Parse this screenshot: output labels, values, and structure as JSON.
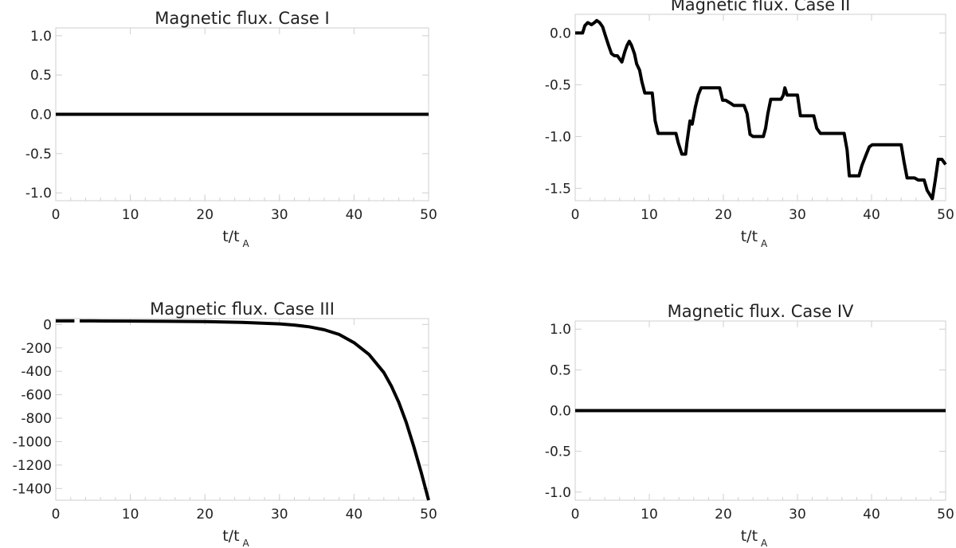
{
  "chart_data": [
    {
      "type": "line",
      "title": "Magnetic flux. Case I",
      "xlabel": "t/t",
      "xlabel_subscript": "A",
      "xlim": [
        0,
        50
      ],
      "ylim": [
        -1.1,
        1.1
      ],
      "xticks": [
        "0",
        "10",
        "20",
        "30",
        "40",
        "50"
      ],
      "yticks": [
        "-1.0",
        "-0.5",
        "0.0",
        "0.5",
        "1.0"
      ],
      "series": [
        {
          "x": [
            0,
            50
          ],
          "y": [
            0,
            0
          ]
        }
      ]
    },
    {
      "type": "line",
      "title": "Magnetic flux. Case II",
      "xlabel": "t/t",
      "xlabel_subscript": "A",
      "xlim": [
        0,
        50
      ],
      "ylim": [
        -1.62,
        0.18
      ],
      "xticks": [
        "0",
        "10",
        "20",
        "30",
        "40",
        "50"
      ],
      "yticks": [
        "-1.5",
        "-1.0",
        "-0.5",
        "0.0"
      ],
      "series": [
        {
          "x": [
            0,
            1.0,
            1.3,
            1.7,
            2.2,
            2.6,
            2.9,
            3.3,
            3.7,
            4.1,
            4.5,
            4.9,
            5.3,
            5.7,
            6.0,
            6.3,
            6.7,
            7.0,
            7.3,
            7.6,
            8.0,
            8.3,
            8.7,
            9.0,
            9.4,
            9.8,
            10.4,
            10.8,
            11.2,
            12.0,
            13.6,
            13.9,
            14.4,
            14.9,
            15.1,
            15.5,
            15.8,
            16.2,
            16.6,
            17.0,
            17.4,
            18.5,
            19.5,
            19.9,
            20.3,
            21.0,
            21.4,
            22.8,
            23.2,
            23.6,
            24.0,
            25.4,
            25.7,
            26.0,
            26.4,
            27.8,
            28.1,
            28.3,
            28.6,
            28.8,
            30.0,
            30.4,
            32.2,
            32.6,
            33.1,
            36.3,
            36.7,
            37.0,
            38.3,
            38.7,
            39.3,
            39.7,
            40.1,
            44.0,
            44.4,
            44.8,
            45.8,
            46.3,
            47.1,
            47.5,
            48.2,
            48.6,
            49.0,
            49.5,
            49.8,
            50.0
          ],
          "y": [
            0.0,
            0.0,
            0.07,
            0.1,
            0.08,
            0.1,
            0.12,
            0.1,
            0.06,
            -0.03,
            -0.12,
            -0.2,
            -0.22,
            -0.22,
            -0.25,
            -0.28,
            -0.18,
            -0.12,
            -0.08,
            -0.12,
            -0.2,
            -0.3,
            -0.36,
            -0.47,
            -0.58,
            -0.58,
            -0.58,
            -0.85,
            -0.97,
            -0.97,
            -0.97,
            -1.06,
            -1.17,
            -1.17,
            -1.05,
            -0.85,
            -0.88,
            -0.72,
            -0.6,
            -0.53,
            -0.53,
            -0.53,
            -0.53,
            -0.65,
            -0.65,
            -0.68,
            -0.7,
            -0.7,
            -0.78,
            -0.98,
            -1.0,
            -1.0,
            -0.92,
            -0.78,
            -0.64,
            -0.64,
            -0.6,
            -0.53,
            -0.6,
            -0.6,
            -0.6,
            -0.8,
            -0.8,
            -0.92,
            -0.97,
            -0.97,
            -1.13,
            -1.38,
            -1.38,
            -1.28,
            -1.17,
            -1.1,
            -1.08,
            -1.08,
            -1.25,
            -1.4,
            -1.4,
            -1.42,
            -1.42,
            -1.52,
            -1.6,
            -1.42,
            -1.22,
            -1.22,
            -1.25,
            -1.27
          ]
        }
      ]
    },
    {
      "type": "line",
      "title": "Magnetic flux. Case III",
      "xlabel": "t/t",
      "xlabel_subscript": "A",
      "xlim": [
        0,
        50
      ],
      "ylim": [
        -1500,
        50
      ],
      "xticks": [
        "0",
        "10",
        "20",
        "30",
        "40",
        "50"
      ],
      "yticks": [
        "-1400",
        "-1200",
        "-1000",
        "-800",
        "-600",
        "-400",
        "-200",
        "0"
      ],
      "series": [
        {
          "x": [
            0,
            2.5,
            3.2,
            5,
            10,
            15,
            20,
            25,
            30,
            32,
            34,
            36,
            38,
            40,
            42,
            44,
            45,
            46,
            47,
            48,
            49,
            50
          ],
          "y": [
            30,
            30,
            30,
            30,
            29,
            27,
            24,
            18,
            5,
            -5,
            -20,
            -45,
            -85,
            -155,
            -255,
            -410,
            -525,
            -665,
            -835,
            -1040,
            -1260,
            -1500
          ],
          "gaps_after_index": [
            1
          ]
        }
      ]
    },
    {
      "type": "line",
      "title": "Magnetic flux. Case IV",
      "xlabel": "t/t",
      "xlabel_subscript": "A",
      "xlim": [
        0,
        50
      ],
      "ylim": [
        -1.1,
        1.1
      ],
      "xticks": [
        "0",
        "10",
        "20",
        "30",
        "40",
        "50"
      ],
      "yticks": [
        "-1.0",
        "-0.5",
        "0.0",
        "0.5",
        "1.0"
      ],
      "series": [
        {
          "x": [
            0,
            50
          ],
          "y": [
            0,
            0
          ]
        }
      ]
    }
  ]
}
